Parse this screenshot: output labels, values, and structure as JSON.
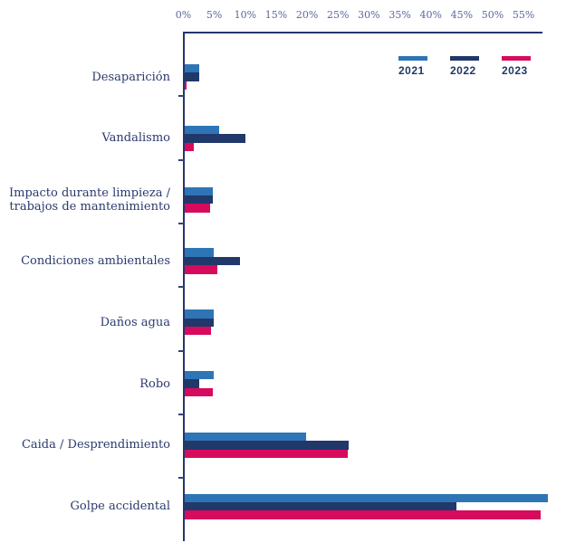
{
  "chart_data": {
    "type": "bar",
    "orientation": "horizontal",
    "title": "",
    "categories": [
      "Desaparición",
      "Vandalismo",
      "Impacto durante limpieza / trabajos de mantenimiento",
      "Condiciones ambientales",
      "Daños agua",
      "Robo",
      "Caida / Desprendimiento",
      "Golpe accidental"
    ],
    "series": [
      {
        "name": "2021",
        "color": "#2e75b6",
        "values": [
          2.3,
          5.5,
          4.6,
          4.7,
          4.7,
          4.7,
          19.6,
          58.7
        ]
      },
      {
        "name": "2022",
        "color": "#21386b",
        "values": [
          2.4,
          9.8,
          4.6,
          9.0,
          4.7,
          2.4,
          26.5,
          43.9
        ]
      },
      {
        "name": "2023",
        "color": "#d60b5e",
        "values": [
          0.3,
          1.4,
          4.1,
          5.3,
          4.2,
          4.6,
          26.3,
          57.6
        ]
      }
    ],
    "x_axis": {
      "unit": "%",
      "min": 0,
      "max": 55,
      "step": 5,
      "tick_labels": [
        "0%",
        "5%",
        "10%",
        "15%",
        "20%",
        "25%",
        "30%",
        "35%",
        "40%",
        "45%",
        "50%",
        "55%"
      ]
    },
    "legend": {
      "position": "top-right",
      "entries": [
        "2021",
        "2022",
        "2023"
      ]
    },
    "grid": false,
    "colors": {
      "axis_line": "#26356e",
      "tick_text": "#5a699b",
      "category_text": "#2a3a6d",
      "legend_text": "#1f3864",
      "background": "#ffffff"
    }
  }
}
